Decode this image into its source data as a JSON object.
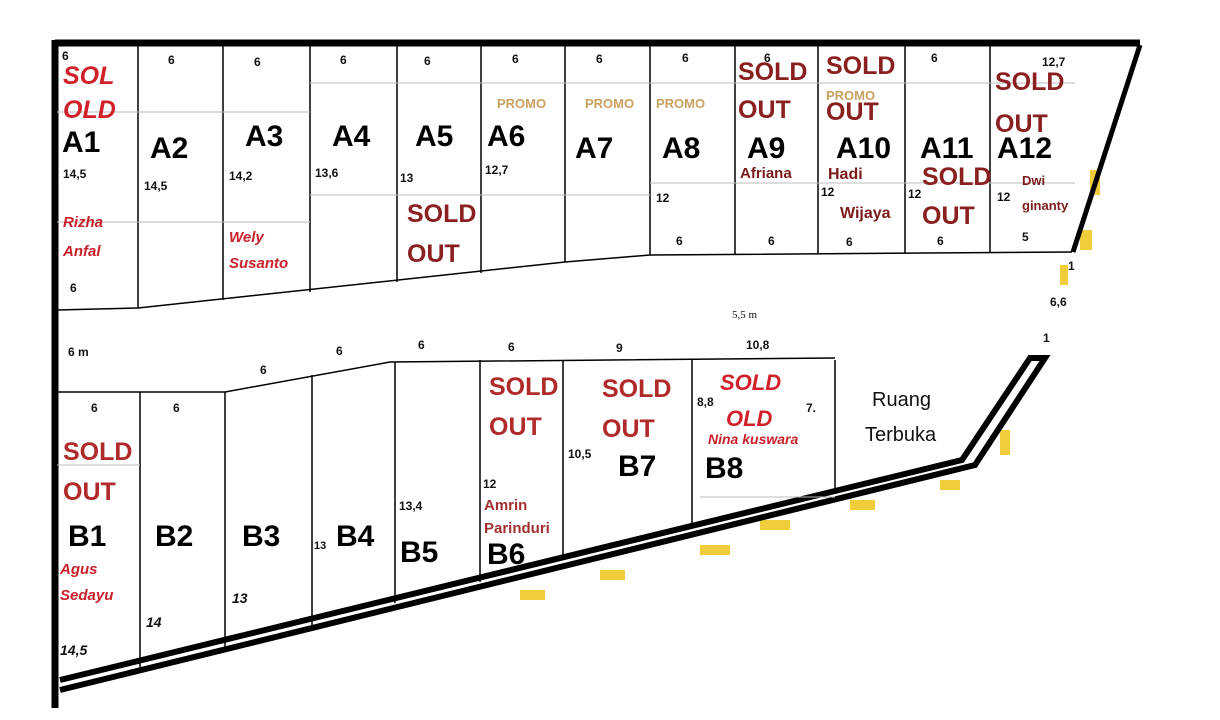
{
  "block_a": {
    "lots": [
      {
        "id": "A1",
        "front": "6",
        "depth": "14,5",
        "back": "6",
        "status": [
          "SOL",
          "OLD"
        ],
        "owner": [
          "Rizha",
          "Anfal"
        ]
      },
      {
        "id": "A2",
        "front": "6",
        "depth": "14,5"
      },
      {
        "id": "A3",
        "front": "6",
        "depth": "14,2",
        "owner": [
          "Wely",
          "Susanto"
        ]
      },
      {
        "id": "A4",
        "front": "6",
        "depth": "13,6"
      },
      {
        "id": "A5",
        "front": "6",
        "depth": "13",
        "status": [
          "SOLD",
          "OUT"
        ]
      },
      {
        "id": "A6",
        "front": "6",
        "depth": "12,7",
        "promo": "PROMO"
      },
      {
        "id": "A7",
        "front": "6",
        "promo": "PROMO"
      },
      {
        "id": "A8",
        "front": "6",
        "depth": "12",
        "back": "6",
        "promo": "PROMO"
      },
      {
        "id": "A9",
        "front": "6",
        "back": "6",
        "status": [
          "SOLD",
          "OUT"
        ],
        "owner": [
          "Afriana"
        ]
      },
      {
        "id": "A10",
        "back": "6",
        "depth": "12",
        "status": [
          "SOLD",
          "OUT"
        ],
        "promo": "PROMO",
        "owner": [
          "Hadi",
          "Wijaya"
        ]
      },
      {
        "id": "A11",
        "front": "6",
        "depth": "12",
        "back": "6",
        "status": [
          "SOLD",
          "OUT"
        ]
      },
      {
        "id": "A12",
        "front": "12,7",
        "depth": "12",
        "back": "5",
        "status": [
          "SOLD",
          "OUT"
        ],
        "owner": [
          "Dwi",
          "ginanty"
        ]
      }
    ]
  },
  "road": {
    "width_left": "6 m",
    "width_mid": "5,5 m",
    "right_dim": "6,6",
    "corner_1": "1",
    "corner_2": "1"
  },
  "block_b": {
    "lots": [
      {
        "id": "B1",
        "front": "6",
        "depth": "14,5",
        "status": [
          "SOLD",
          "OUT"
        ],
        "owner": [
          "Agus",
          "Sedayu"
        ]
      },
      {
        "id": "B2",
        "front": "6",
        "depth": "14"
      },
      {
        "id": "B3",
        "front": "6",
        "depth": "13"
      },
      {
        "id": "B4",
        "front": "6",
        "depth": "13"
      },
      {
        "id": "B5",
        "front": "6",
        "depth": "13,4"
      },
      {
        "id": "B6",
        "front": "6",
        "depth": "12",
        "status": [
          "SOLD",
          "OUT"
        ],
        "owner": [
          "Amrin",
          "Parinduri"
        ]
      },
      {
        "id": "B7",
        "front": "9",
        "depth": "10,5",
        "status": [
          "SOLD",
          "OUT"
        ]
      },
      {
        "id": "B8",
        "front": "10,8",
        "depth": "8,8",
        "side": "7.",
        "status": [
          "SOLD",
          "OLD"
        ],
        "owner": [
          "Nina kuswara"
        ]
      }
    ],
    "open_space": [
      "Ruang",
      "Terbuka"
    ]
  },
  "colors": {
    "sold_dark": "#8a1f1f",
    "sold_red": "#d0202a",
    "promo": "#c8a060",
    "highlight": "#f1cd3c"
  }
}
